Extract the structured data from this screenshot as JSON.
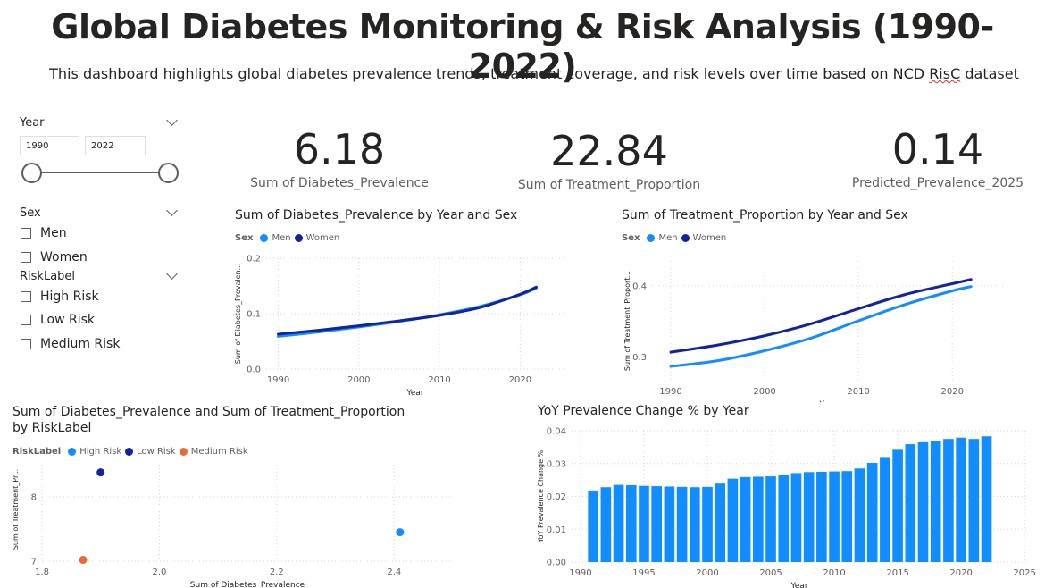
{
  "header": {
    "title": "Global Diabetes Monitoring & Risk Analysis (1990-2022)",
    "subtitle_main": "This dashboard highlights global diabetes prevalence trends, treatment coverage, and risk levels over time based on NCD ",
    "subtitle_tail": "RisC",
    "subtitle_end": " dataset"
  },
  "slicers": {
    "year": {
      "label": "Year",
      "from": "1990",
      "to": "2022"
    },
    "sex": {
      "label": "Sex",
      "options": [
        "Men",
        "Women"
      ]
    },
    "risk": {
      "label": "RiskLabel",
      "options": [
        "High Risk",
        "Low Risk",
        "Medium Risk"
      ]
    }
  },
  "kpis": [
    {
      "value": "6.18",
      "label": "Sum of Diabetes_Prevalence"
    },
    {
      "value": "22.84",
      "label": "Sum of Treatment_Proportion"
    },
    {
      "value": "0.14",
      "label": "Predicted_Prevalence_2025"
    }
  ],
  "colors": {
    "men": "#118dff",
    "women": "#12239e",
    "high": "#118dff",
    "low": "#12239e",
    "medium": "#e66c37",
    "bar": "#118dff"
  },
  "chart_data": [
    {
      "id": "prev",
      "type": "line",
      "title": "Sum of Diabetes_Prevalence by Year and Sex",
      "legend_title": "Sex",
      "xlabel": "Year",
      "ylabel": "Sum of Diabetes_Prevalen...",
      "xlim": [
        1988.5,
        2025.5
      ],
      "ylim": [
        0,
        0.2
      ],
      "xticks": [
        1990,
        2000,
        2010,
        2020
      ],
      "yticks": [
        0,
        0.1,
        0.2
      ],
      "ytick_labels": [
        "0.0",
        "0.1",
        "0.2"
      ],
      "x": [
        1990,
        1995,
        2000,
        2005,
        2010,
        2015,
        2020,
        2022
      ],
      "series": [
        {
          "name": "Men",
          "values": [
            0.059,
            0.067,
            0.076,
            0.086,
            0.098,
            0.113,
            0.134,
            0.146
          ]
        },
        {
          "name": "Women",
          "values": [
            0.063,
            0.07,
            0.078,
            0.087,
            0.097,
            0.111,
            0.135,
            0.148
          ]
        }
      ]
    },
    {
      "id": "treat",
      "type": "line",
      "title": "Sum of Treatment_Proportion by Year and Sex",
      "legend_title": "Sex",
      "xlabel": "Year",
      "ylabel": "Sum of Treatment_Proport...",
      "xlim": [
        1988,
        2025.5
      ],
      "ylim": [
        0.267,
        0.435
      ],
      "xticks": [
        1990,
        2000,
        2010,
        2020
      ],
      "yticks": [
        0.3,
        0.4
      ],
      "ytick_labels": [
        "0.3",
        "0.4"
      ],
      "x": [
        1990,
        1995,
        2000,
        2005,
        2010,
        2015,
        2020,
        2022
      ],
      "series": [
        {
          "name": "Men",
          "values": [
            0.287,
            0.295,
            0.309,
            0.327,
            0.351,
            0.374,
            0.393,
            0.399
          ]
        },
        {
          "name": "Women",
          "values": [
            0.307,
            0.317,
            0.33,
            0.347,
            0.368,
            0.388,
            0.403,
            0.409
          ]
        }
      ]
    },
    {
      "id": "scatter",
      "type": "scatter",
      "title_line1": "Sum of Diabetes_Prevalence and Sum of Treatment_Proportion",
      "title_line2": "by RiskLabel",
      "legend_title": "RiskLabel",
      "xlabel": "Sum of Diabetes_Prevalence",
      "ylabel": "Sum of Treatment_Pr...",
      "xlim": [
        1.8,
        2.5
      ],
      "ylim": [
        7.0,
        8.5
      ],
      "xticks": [
        1.8,
        2.0,
        2.2,
        2.4
      ],
      "xtick_labels": [
        "1.8",
        "2.0",
        "2.2",
        "2.4"
      ],
      "yticks": [
        7,
        8
      ],
      "ytick_labels": [
        "7",
        "8"
      ],
      "points": [
        {
          "name": "High Risk",
          "x": 2.41,
          "y": 7.45
        },
        {
          "name": "Low Risk",
          "x": 1.9,
          "y": 8.38
        },
        {
          "name": "Medium Risk",
          "x": 1.87,
          "y": 7.02
        }
      ]
    },
    {
      "id": "yoy",
      "type": "bar",
      "title": "YoY Prevalence Change % by Year",
      "xlabel": "Year",
      "ylabel": "YoY Prevalence Change %",
      "xlim": [
        1989.3,
        2025.2
      ],
      "ylim": [
        0,
        0.04
      ],
      "xticks": [
        1990,
        1995,
        2000,
        2005,
        2010,
        2015,
        2020,
        2025
      ],
      "yticks": [
        0,
        0.01,
        0.02,
        0.03,
        0.04
      ],
      "ytick_labels": [
        "0.00",
        "0.01",
        "0.02",
        "0.03",
        "0.04"
      ],
      "categories": [
        1991,
        1992,
        1993,
        1994,
        1995,
        1996,
        1997,
        1998,
        1999,
        2000,
        2001,
        2002,
        2003,
        2004,
        2005,
        2006,
        2007,
        2008,
        2009,
        2010,
        2011,
        2012,
        2013,
        2014,
        2015,
        2016,
        2017,
        2018,
        2019,
        2020,
        2021,
        2022
      ],
      "values": [
        0.0218,
        0.0228,
        0.0235,
        0.0234,
        0.0232,
        0.0231,
        0.023,
        0.0229,
        0.0228,
        0.0229,
        0.0239,
        0.0254,
        0.0259,
        0.026,
        0.0261,
        0.0266,
        0.0271,
        0.0274,
        0.0275,
        0.0276,
        0.0277,
        0.0285,
        0.0302,
        0.032,
        0.0342,
        0.0359,
        0.0365,
        0.0369,
        0.0375,
        0.0379,
        0.0375,
        0.0383
      ]
    }
  ]
}
